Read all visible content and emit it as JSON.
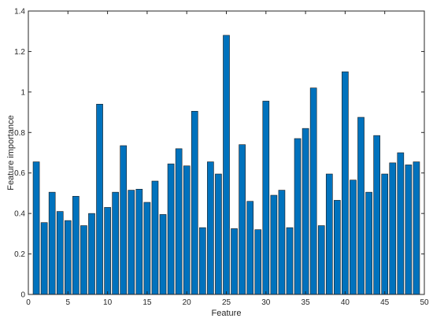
{
  "chart_data": {
    "type": "bar",
    "xlabel": "Feature",
    "ylabel": "Feature importance",
    "xlim": [
      0,
      50
    ],
    "ylim": [
      0,
      1.4
    ],
    "xticks": [
      0,
      5,
      10,
      15,
      20,
      25,
      30,
      35,
      40,
      45,
      50
    ],
    "xtick_labels": [
      "0",
      "5",
      "10",
      "15",
      "20",
      "25",
      "30",
      "35",
      "40",
      "45",
      "50"
    ],
    "yticks": [
      0,
      0.2,
      0.4,
      0.6,
      0.8,
      1.0,
      1.2,
      1.4
    ],
    "ytick_labels": [
      "0",
      "0.2",
      "0.4",
      "0.6",
      "0.8",
      "1",
      "1.2",
      "1.4"
    ],
    "grid": false,
    "bar_color": "#0072BD",
    "x": [
      1,
      2,
      3,
      4,
      5,
      6,
      7,
      8,
      9,
      10,
      11,
      12,
      13,
      14,
      15,
      16,
      17,
      18,
      19,
      20,
      21,
      22,
      23,
      24,
      25,
      26,
      27,
      28,
      29,
      30,
      31,
      32,
      33,
      34,
      35,
      36,
      37,
      38,
      39,
      40,
      41,
      42,
      43,
      44,
      45,
      46,
      47,
      48,
      49
    ],
    "values": [
      0.655,
      0.355,
      0.505,
      0.41,
      0.365,
      0.485,
      0.34,
      0.4,
      0.94,
      0.43,
      0.505,
      0.735,
      0.515,
      0.52,
      0.455,
      0.56,
      0.395,
      0.645,
      0.72,
      0.635,
      0.905,
      0.33,
      0.655,
      0.595,
      1.28,
      0.325,
      0.74,
      0.46,
      0.32,
      0.955,
      0.49,
      0.515,
      0.33,
      0.77,
      0.82,
      1.02,
      0.34,
      0.595,
      0.465,
      1.1,
      0.565,
      0.875,
      0.505,
      0.785,
      0.595,
      0.65,
      0.7,
      0.64,
      0.655
    ]
  }
}
